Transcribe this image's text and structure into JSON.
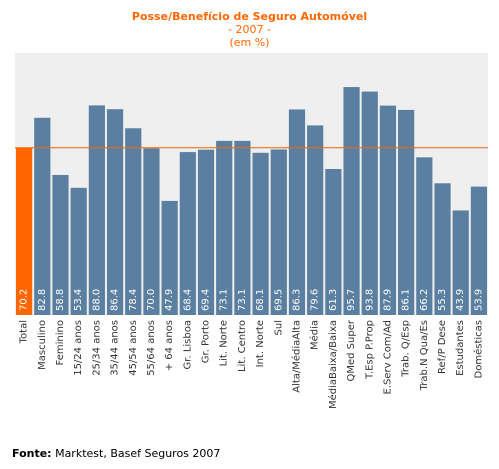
{
  "title": "Posse/Benefício de Seguro Automóvel",
  "subtitle": "- 2007 -",
  "unit_note": "(em %)",
  "source_label": "Fonte:",
  "source_text": " Marktest, Basef Seguros 2007",
  "colors": {
    "bar": "#5b7fa0",
    "highlight": "#ff6600",
    "plot_bg": "#efefef",
    "axis_text": "#333333",
    "value_text": "#ffffff",
    "title": "#ff6600"
  },
  "chart_data": {
    "type": "bar",
    "title": "Posse/Benefício de Seguro Automóvel",
    "subtitle": "- 2007 -",
    "ylabel": "",
    "xlabel": "",
    "ylim": [
      0,
      110
    ],
    "grid": false,
    "legend": "none",
    "highlight_category": "Total",
    "reference_line": 70.2,
    "categories": [
      "Total",
      "Masculino",
      "Feminino",
      "15/24 anos",
      "25/34 anos",
      "35/44 anos",
      "45/54 anos",
      "55/64 anos",
      "+ 64 anos",
      "Gr. Lisboa",
      "Gr. Porto",
      "Lit. Norte",
      "Lit. Centro",
      "Int. Norte",
      "Sul",
      "Alta/MédiaAlta",
      "Média",
      "MédiaBaixa/Baixa",
      "QMed Super",
      "T.Esp P.Prop",
      "E.Serv Com/Ad",
      "Trab. Q/Esp",
      "Trab.N Qua/Es",
      "Ref/P Dese",
      "Estudantes",
      "Domésticas"
    ],
    "values": [
      70.2,
      82.8,
      58.8,
      53.4,
      88.0,
      86.4,
      78.4,
      70.0,
      47.9,
      68.4,
      69.4,
      73.1,
      73.1,
      68.1,
      69.5,
      86.3,
      79.6,
      61.3,
      95.7,
      93.8,
      87.9,
      86.1,
      66.2,
      55.3,
      43.9,
      53.9
    ],
    "value_labels": [
      "70.2",
      "82.8",
      "58.8",
      "53.4",
      "88.0",
      "86.4",
      "78.4",
      "70.0",
      "47.9",
      "68.4",
      "69.4",
      "73.1",
      "73.1",
      "68.1",
      "69.5",
      "86.3",
      "79.6",
      "61.3",
      "95.7",
      "93.8",
      "87.9",
      "86.1",
      "66.2",
      "55.3",
      "43.9",
      "53.9"
    ]
  }
}
